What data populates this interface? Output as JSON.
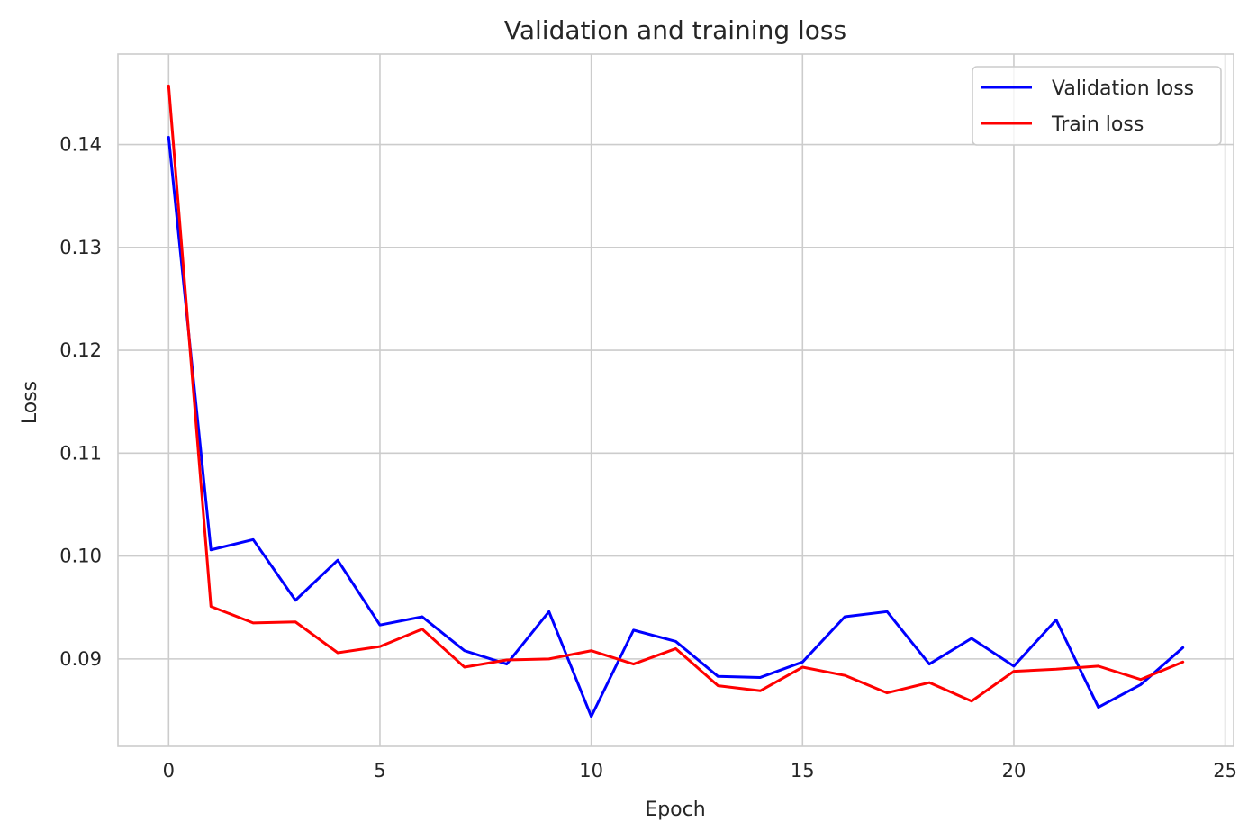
{
  "chart_data": {
    "type": "line",
    "title": "Validation and training loss",
    "xlabel": "Epoch",
    "ylabel": "Loss",
    "xlim": [
      -1.2,
      25.2
    ],
    "ylim": [
      0.0815,
      0.1488
    ],
    "xticks": [
      0,
      5,
      10,
      15,
      20,
      25
    ],
    "xtick_labels": [
      "0",
      "5",
      "10",
      "15",
      "20",
      "25"
    ],
    "yticks": [
      0.09,
      0.1,
      0.11,
      0.12,
      0.13,
      0.14
    ],
    "ytick_labels": [
      "0.09",
      "0.10",
      "0.11",
      "0.12",
      "0.13",
      "0.14"
    ],
    "grid": true,
    "legend_position": "top-right",
    "x": [
      0,
      1,
      2,
      3,
      4,
      5,
      6,
      7,
      8,
      9,
      10,
      11,
      12,
      13,
      14,
      15,
      16,
      17,
      18,
      19,
      20,
      21,
      22,
      23,
      24
    ],
    "series": [
      {
        "name": "Validation loss",
        "color": "#0000ff",
        "values": [
          0.1407,
          0.1006,
          0.1016,
          0.0957,
          0.0996,
          0.0933,
          0.0941,
          0.0908,
          0.0895,
          0.0946,
          0.0844,
          0.0928,
          0.0917,
          0.0883,
          0.0882,
          0.0897,
          0.0941,
          0.0946,
          0.0895,
          0.092,
          0.0893,
          0.0938,
          0.0853,
          0.0875,
          0.0911
        ]
      },
      {
        "name": "Train loss",
        "color": "#ff0000",
        "values": [
          0.1457,
          0.0951,
          0.0935,
          0.0936,
          0.0906,
          0.0912,
          0.0929,
          0.0892,
          0.0899,
          0.09,
          0.0908,
          0.0895,
          0.091,
          0.0874,
          0.0869,
          0.0892,
          0.0884,
          0.0867,
          0.0877,
          0.0859,
          0.0888,
          0.089,
          0.0893,
          0.088,
          0.0897
        ]
      }
    ]
  }
}
